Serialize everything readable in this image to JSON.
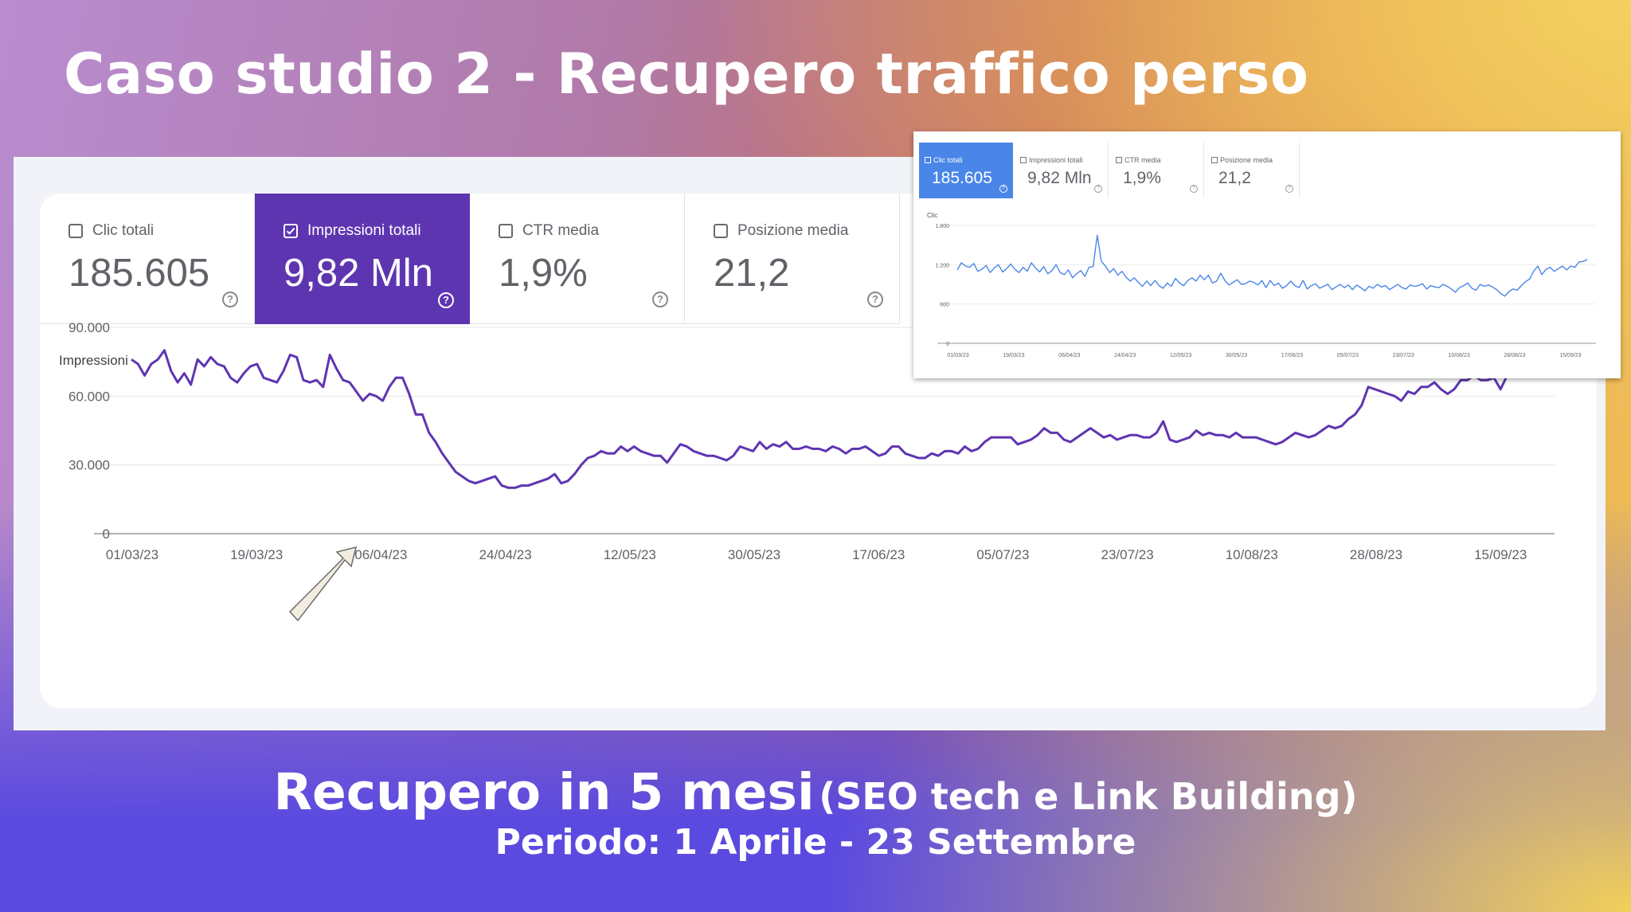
{
  "slide": {
    "title": "Caso studio 2 - Recupero traffico perso",
    "headline_main": "Recupero in 5 mesi",
    "headline_note": "(SEO tech e Link Building)",
    "period": "Periodo: 1 Aprile - 23 Settembre"
  },
  "metrics": [
    {
      "label": "Clic totali",
      "value": "185.605",
      "checked": false
    },
    {
      "label": "Impressioni totali",
      "value": "9,82 Mln",
      "checked": true
    },
    {
      "label": "CTR media",
      "value": "1,9%",
      "checked": false
    },
    {
      "label": "Posizione media",
      "value": "21,2",
      "checked": false
    }
  ],
  "inset_metrics": [
    {
      "label": "Clic totali",
      "value": "185.605",
      "checked": true
    },
    {
      "label": "Impressioni totali",
      "value": "9,82 Mln",
      "checked": false
    },
    {
      "label": "CTR media",
      "value": "1,9%",
      "checked": false
    },
    {
      "label": "Posizione media",
      "value": "21,2",
      "checked": false
    }
  ],
  "colors": {
    "impressions_line": "#5e35b1",
    "clicks_line": "#4a86e8",
    "annotation_arrow_fill": "#f3ede0",
    "annotation_arrow_stroke": "#6b6b6b"
  },
  "chart_data": [
    {
      "type": "line",
      "ylabel": "Impressioni",
      "ylim": [
        0,
        90000
      ],
      "yticks": [
        0,
        30000,
        60000,
        90000
      ],
      "ytick_labels": [
        "0",
        "30.000",
        "60.000",
        "90.000"
      ],
      "x_tick_labels": [
        "01/03/23",
        "19/03/23",
        "06/04/23",
        "24/04/23",
        "12/05/23",
        "30/05/23",
        "17/06/23",
        "05/07/23",
        "23/07/23",
        "10/08/23",
        "28/08/23",
        "15/09/23"
      ],
      "x_start": "01/03/23",
      "x_end": "23/09/23",
      "grid": true,
      "series": [
        {
          "values": [
            76000,
            74000,
            69000,
            74000,
            76000,
            80000,
            71000,
            66000,
            70000,
            65000,
            76000,
            73000,
            77000,
            74000,
            73000,
            68000,
            66000,
            70000,
            73000,
            74000,
            68000,
            67000,
            66000,
            71000,
            78000,
            77000,
            67000,
            66000,
            67000,
            64000,
            78000,
            72000,
            67000,
            66000,
            62000,
            58000,
            61000,
            60000,
            58000,
            64000,
            68000,
            68000,
            61000,
            52000,
            52000,
            44000,
            40000,
            35000,
            31000,
            27000,
            25000,
            23000,
            22000,
            23000,
            24000,
            25000,
            21000,
            20000,
            20000,
            21000,
            21000,
            22000,
            23000,
            24000,
            26000,
            22000,
            23000,
            26000,
            30000,
            33000,
            34000,
            36000,
            35000,
            35000,
            38000,
            36000,
            38000,
            36000,
            35000,
            34000,
            34000,
            31000,
            35000,
            39000,
            38000,
            36000,
            35000,
            34000,
            34000,
            33000,
            32000,
            34000,
            38000,
            37000,
            36000,
            40000,
            37000,
            39000,
            38000,
            40000,
            37000,
            37000,
            38000,
            37000,
            37000,
            36000,
            38000,
            37000,
            35000,
            37000,
            37000,
            38000,
            36000,
            34000,
            35000,
            38000,
            38000,
            35000,
            34000,
            33000,
            33000,
            35000,
            34000,
            36000,
            36000,
            35000,
            38000,
            36000,
            37000,
            40000,
            42000,
            42000,
            42000,
            42000,
            39000,
            40000,
            41000,
            43000,
            46000,
            44000,
            44000,
            41000,
            40000,
            42000,
            44000,
            46000,
            44000,
            42000,
            43000,
            41000,
            42000,
            43000,
            43000,
            42000,
            42000,
            44000,
            49000,
            41000,
            40000,
            41000,
            42000,
            45000,
            43000,
            44000,
            43000,
            43000,
            42000,
            44000,
            42000,
            42000,
            42000,
            41000,
            40000,
            39000,
            40000,
            42000,
            44000,
            43000,
            42000,
            43000,
            45000,
            47000,
            46000,
            47000,
            50000,
            52000,
            56000,
            64000,
            63000,
            62000,
            61000,
            60000,
            58000,
            62000,
            61000,
            64000,
            64000,
            66000,
            63000,
            61000,
            63000,
            67000,
            67000,
            69000,
            67000,
            67000,
            68000,
            63000,
            69000,
            76000,
            73000,
            71000,
            69000,
            70000
          ]
        }
      ]
    },
    {
      "type": "line",
      "ylabel": "Clic",
      "ylim": [
        0,
        1800
      ],
      "yticks": [
        0,
        600,
        1200,
        1800
      ],
      "ytick_labels": [
        "0",
        "600",
        "1.200",
        "1.800"
      ],
      "x_tick_labels": [
        "01/03/23",
        "19/03/23",
        "06/04/23",
        "24/04/23",
        "12/05/23",
        "30/05/23",
        "17/06/23",
        "05/07/23",
        "23/07/23",
        "10/08/23",
        "28/08/23",
        "15/09/23"
      ],
      "x_start": "01/03/23",
      "x_end": "23/09/23",
      "grid": true,
      "series": [
        {
          "values": [
            1120,
            1230,
            1180,
            1160,
            1220,
            1100,
            1130,
            1190,
            1080,
            1150,
            1200,
            1090,
            1140,
            1210,
            1130,
            1080,
            1160,
            1100,
            1230,
            1150,
            1090,
            1170,
            1060,
            1110,
            1200,
            1080,
            1050,
            1120,
            1000,
            1060,
            1110,
            1020,
            1160,
            1170,
            1650,
            1250,
            1180,
            1080,
            1140,
            1040,
            1100,
            1010,
            950,
            1000,
            930,
            870,
            950,
            880,
            960,
            880,
            840,
            920,
            870,
            990,
            920,
            880,
            960,
            1000,
            950,
            1040,
            970,
            1040,
            920,
            950,
            1070,
            960,
            890,
            930,
            970,
            900,
            910,
            950,
            930,
            890,
            960,
            850,
            960,
            880,
            920,
            840,
            880,
            950,
            880,
            850,
            960,
            830,
            880,
            910,
            840,
            870,
            900,
            820,
            860,
            900,
            850,
            890,
            820,
            890,
            850,
            800,
            870,
            840,
            900,
            860,
            880,
            820,
            860,
            900,
            850,
            830,
            890,
            870,
            880,
            910,
            830,
            880,
            860,
            850,
            900,
            870,
            830,
            780,
            850,
            880,
            920,
            840,
            810,
            900,
            870,
            890,
            860,
            820,
            760,
            720,
            790,
            830,
            810,
            880,
            940,
            980,
            1100,
            1180,
            1050,
            1130,
            1160,
            1100,
            1140,
            1180,
            1120,
            1180,
            1160,
            1240,
            1250,
            1280
          ]
        }
      ]
    }
  ]
}
